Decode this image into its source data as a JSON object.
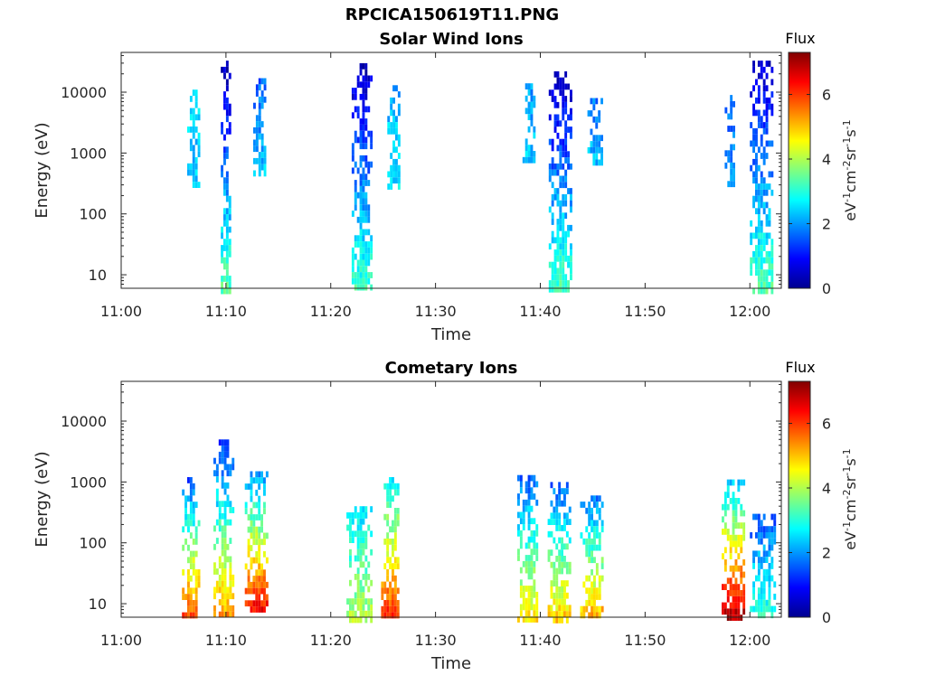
{
  "figure": {
    "title": "RPCICA150619T11.PNG"
  },
  "chart_data": [
    {
      "type": "heatmap",
      "title": "Solar Wind Ions",
      "xlabel": "Time",
      "ylabel": "Energy (eV)",
      "y_scale": "log",
      "xlim": [
        "11:00",
        "12:03"
      ],
      "ylim": [
        6,
        45000
      ],
      "x_ticks": [
        "11:00",
        "11:10",
        "11:20",
        "11:30",
        "11:40",
        "11:50",
        "12:00"
      ],
      "y_ticks": [
        "10",
        "100",
        "1000",
        "10000"
      ],
      "colorbar": {
        "label_top": "Flux",
        "unit": "eV-1cm-2sr-1s-1",
        "range": [
          0,
          7.3
        ],
        "ticks": [
          "0",
          "2",
          "4",
          "6"
        ],
        "colormap": "jet"
      },
      "bursts": [
        {
          "start": "11:06.3",
          "end": "11:07.5",
          "emin": 300,
          "emax": 11000,
          "flux_low": 2.3,
          "flux_high": 2.5
        },
        {
          "start": "11:09.5",
          "end": "11:10.5",
          "emin": 6,
          "emax": 33000,
          "flux_low": 3.4,
          "flux_high": 0.3
        },
        {
          "start": "11:12.6",
          "end": "11:13.8",
          "emin": 500,
          "emax": 17000,
          "flux_low": 2.4,
          "flux_high": 1.6
        },
        {
          "start": "11:22.0",
          "end": "11:23.8",
          "emin": 6,
          "emax": 30000,
          "flux_low": 3.2,
          "flux_high": 0.4
        },
        {
          "start": "11:25.4",
          "end": "11:26.6",
          "emin": 300,
          "emax": 13000,
          "flux_low": 2.6,
          "flux_high": 2.2
        },
        {
          "start": "11:38.3",
          "end": "11:39.5",
          "emin": 700,
          "emax": 14000,
          "flux_low": 2.4,
          "flux_high": 2.0
        },
        {
          "start": "11:40.8",
          "end": "11:43.0",
          "emin": 6,
          "emax": 22000,
          "flux_low": 3.3,
          "flux_high": 0.4
        },
        {
          "start": "11:44.5",
          "end": "11:45.8",
          "emin": 700,
          "emax": 8000,
          "flux_low": 2.3,
          "flux_high": 1.8
        },
        {
          "start": "11:57.6",
          "end": "11:58.5",
          "emin": 300,
          "emax": 9000,
          "flux_low": 2.0,
          "flux_high": 1.6
        },
        {
          "start": "12:00.0",
          "end": "12:02.2",
          "emin": 6,
          "emax": 33000,
          "flux_low": 3.3,
          "flux_high": 0.5
        }
      ]
    },
    {
      "type": "heatmap",
      "title": "Cometary Ions",
      "xlabel": "Time",
      "ylabel": "Energy (eV)",
      "y_scale": "log",
      "xlim": [
        "11:00",
        "12:03"
      ],
      "ylim": [
        6,
        45000
      ],
      "x_ticks": [
        "11:00",
        "11:10",
        "11:20",
        "11:30",
        "11:40",
        "11:50",
        "12:00"
      ],
      "y_ticks": [
        "10",
        "100",
        "1000",
        "10000"
      ],
      "colorbar": {
        "label_top": "Flux",
        "unit": "eV-1cm-2sr-1s-1",
        "range": [
          0,
          7.3
        ],
        "ticks": [
          "0",
          "2",
          "4",
          "6"
        ],
        "colormap": "jet"
      },
      "bursts": [
        {
          "start": "11:05.8",
          "end": "11:07.4",
          "emin": 6,
          "emax": 1200,
          "flux_low": 6.0,
          "flux_high": 1.5
        },
        {
          "start": "11:08.8",
          "end": "11:10.6",
          "emin": 6,
          "emax": 5000,
          "flux_low": 5.4,
          "flux_high": 1.2
        },
        {
          "start": "11:11.8",
          "end": "11:14.0",
          "emin": 8,
          "emax": 1500,
          "flux_low": 6.5,
          "flux_high": 2.0
        },
        {
          "start": "11:21.5",
          "end": "11:23.8",
          "emin": 6,
          "emax": 400,
          "flux_low": 4.0,
          "flux_high": 2.6
        },
        {
          "start": "11:24.8",
          "end": "11:26.5",
          "emin": 6,
          "emax": 1200,
          "flux_low": 6.2,
          "flux_high": 2.6
        },
        {
          "start": "11:37.8",
          "end": "11:39.8",
          "emin": 6,
          "emax": 1300,
          "flux_low": 4.8,
          "flux_high": 1.6
        },
        {
          "start": "11:40.7",
          "end": "11:42.8",
          "emin": 6,
          "emax": 1000,
          "flux_low": 5.0,
          "flux_high": 1.6
        },
        {
          "start": "11:43.8",
          "end": "11:46.0",
          "emin": 6,
          "emax": 600,
          "flux_low": 5.3,
          "flux_high": 1.8
        },
        {
          "start": "11:57.3",
          "end": "11:59.5",
          "emin": 6,
          "emax": 1100,
          "flux_low": 7.0,
          "flux_high": 2.4
        },
        {
          "start": "12:00.0",
          "end": "12:02.4",
          "emin": 6,
          "emax": 300,
          "flux_low": 3.2,
          "flux_high": 1.5
        }
      ]
    }
  ]
}
